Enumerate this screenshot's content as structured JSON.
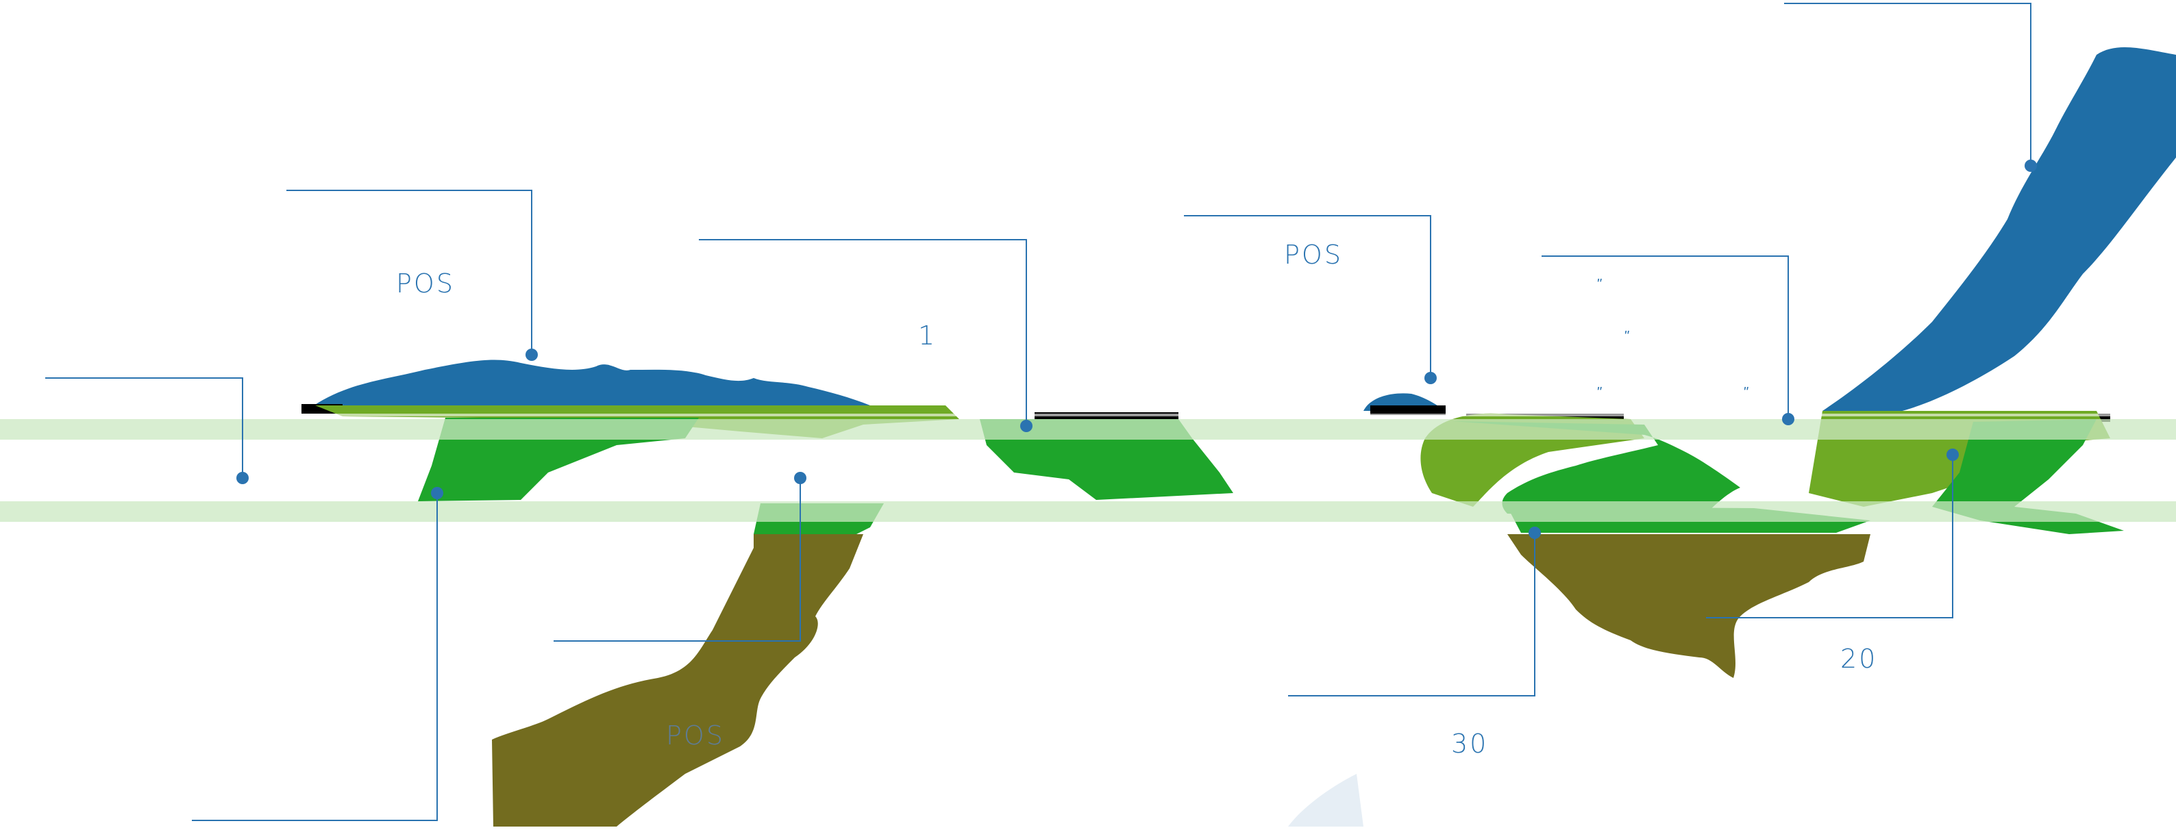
{
  "diagram": {
    "labels": [
      {
        "name": "label-pos-1",
        "text": "POS"
      },
      {
        "name": "label-1",
        "text": "1"
      },
      {
        "name": "label-pos-2",
        "text": "POS"
      },
      {
        "name": "label-pos-3",
        "text": "POS"
      },
      {
        "name": "label-30",
        "text": "30"
      },
      {
        "name": "label-20",
        "text": "20"
      }
    ],
    "marks": [
      "\"",
      "\"",
      "\"",
      "\""
    ],
    "colors": {
      "leader_line": "#2a73b0",
      "blue_layer": "#1f6ea6",
      "green_layer": "#1ea52b",
      "light_green_layer": "#6faa25",
      "olive_layer": "#736c1f",
      "black_layer": "#000000",
      "pale_band": "#cbe8c2"
    }
  }
}
